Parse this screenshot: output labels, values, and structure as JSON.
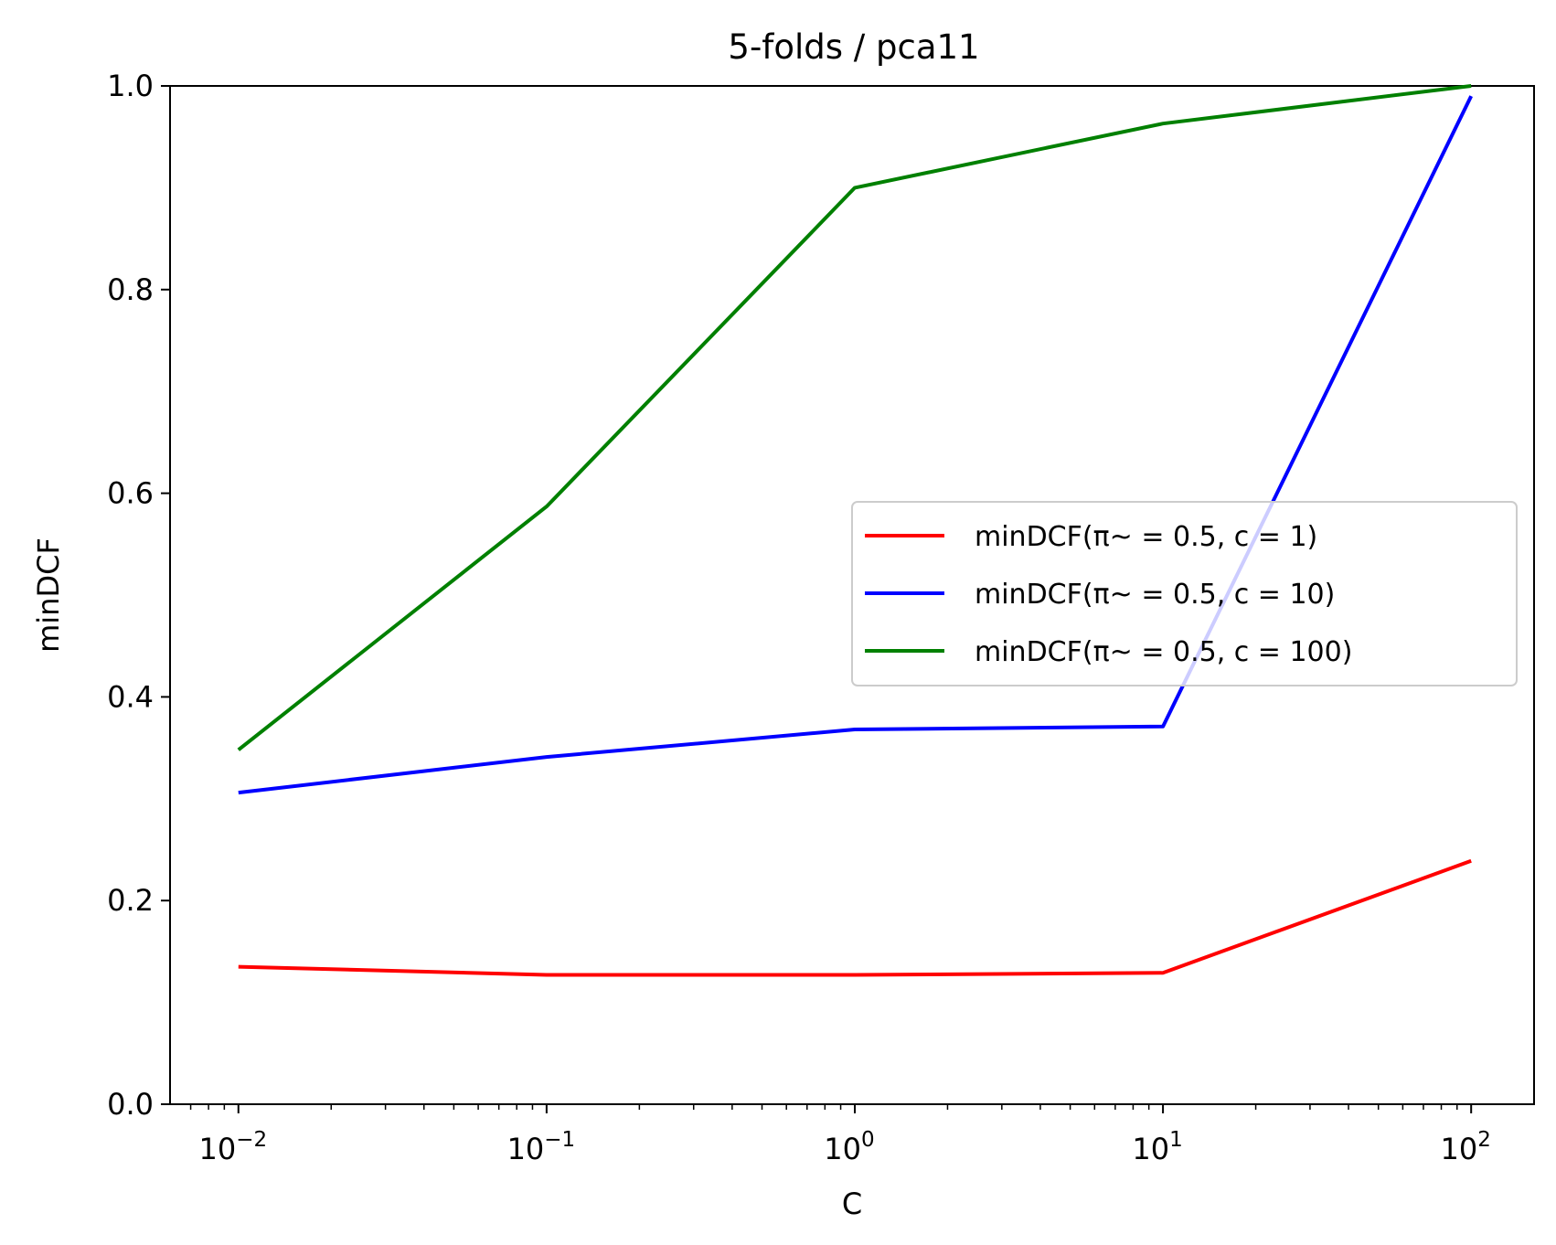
{
  "chart_data": {
    "type": "line",
    "title": "5-folds / pca11",
    "xlabel": "C",
    "ylabel": "minDCF",
    "xscale": "log",
    "xlim": [
      0.006,
      160
    ],
    "ylim": [
      0,
      1
    ],
    "x": [
      0.01,
      0.1,
      1,
      10,
      100
    ],
    "xticks": [
      {
        "base": "10",
        "exp": "−2",
        "value": 0.01
      },
      {
        "base": "10",
        "exp": "−1",
        "value": 0.1
      },
      {
        "base": "10",
        "exp": "0",
        "value": 1
      },
      {
        "base": "10",
        "exp": "1",
        "value": 10
      },
      {
        "base": "10",
        "exp": "2",
        "value": 100
      }
    ],
    "yticks": [
      "0.0",
      "0.2",
      "0.4",
      "0.6",
      "0.8",
      "1.0"
    ],
    "legend_position": "center-right",
    "grid": false,
    "series": [
      {
        "name": "minDCF(π~ = 0.5, c = 1)",
        "color": "#ff0000",
        "values": [
          0.135,
          0.127,
          0.127,
          0.129,
          0.239
        ]
      },
      {
        "name": "minDCF(π~ = 0.5, c = 10)",
        "color": "#0000ff",
        "values": [
          0.306,
          0.341,
          0.368,
          0.371,
          0.99
        ]
      },
      {
        "name": "minDCF(π~ = 0.5, c = 100)",
        "color": "#008000",
        "values": [
          0.348,
          0.587,
          0.9,
          0.963,
          1.0
        ]
      }
    ]
  }
}
